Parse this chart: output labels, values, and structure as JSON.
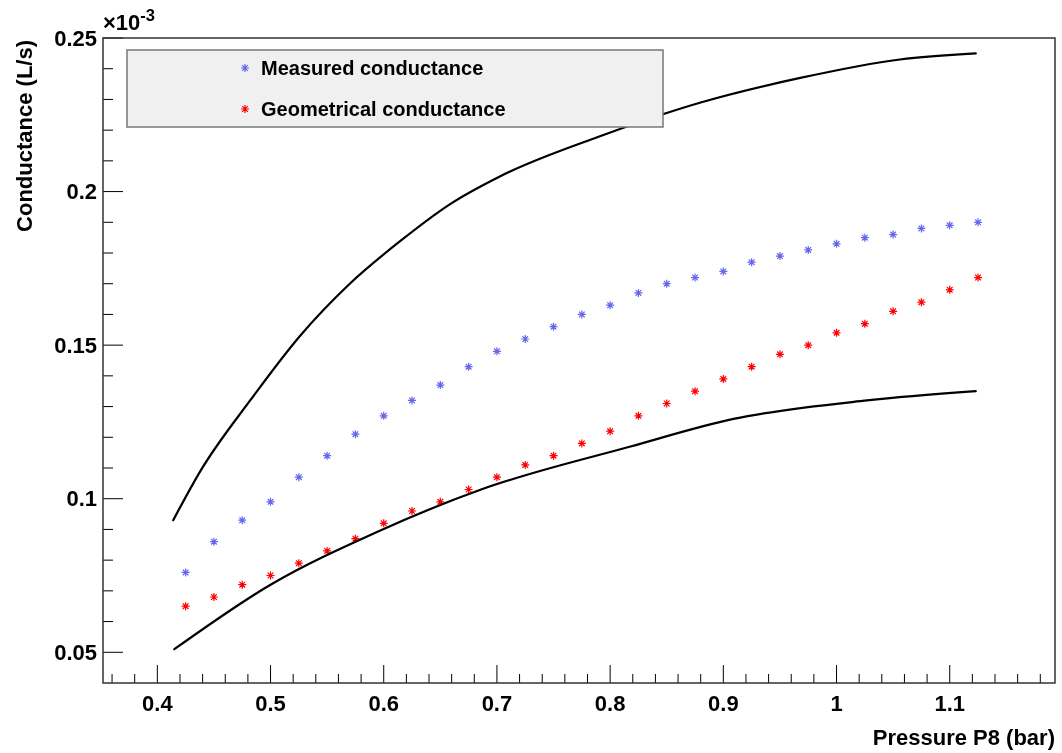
{
  "chart_data": {
    "type": "scatter",
    "xlabel": "Pressure P8 (bar)",
    "ylabel": "Conductance (L/s)",
    "annotations": [
      "×10$^{-3}$"
    ],
    "xlim": [
      0.352,
      1.193
    ],
    "ylim": [
      0.04,
      0.25
    ],
    "xticks": [
      {
        "value": 0.36,
        "label": null
      },
      {
        "value": 0.38,
        "label": null
      },
      0.4,
      {
        "value": 0.42,
        "label": null
      },
      {
        "value": 0.44,
        "label": null
      },
      {
        "value": 0.46,
        "label": null
      },
      {
        "value": 0.48,
        "label": null
      },
      0.5,
      {
        "value": 0.52,
        "label": null
      },
      {
        "value": 0.54,
        "label": null
      },
      {
        "value": 0.56,
        "label": null
      },
      {
        "value": 0.58,
        "label": null
      },
      0.6,
      {
        "value": 0.62,
        "label": null
      },
      {
        "value": 0.64,
        "label": null
      },
      {
        "value": 0.66,
        "label": null
      },
      {
        "value": 0.68,
        "label": null
      },
      0.7,
      {
        "value": 0.72,
        "label": null
      },
      {
        "value": 0.74,
        "label": null
      },
      {
        "value": 0.76,
        "label": null
      },
      {
        "value": 0.78,
        "label": null
      },
      0.8,
      {
        "value": 0.82,
        "label": null
      },
      {
        "value": 0.84,
        "label": null
      },
      {
        "value": 0.86,
        "label": null
      },
      {
        "value": 0.88,
        "label": null
      },
      0.9,
      {
        "value": 0.92,
        "label": null
      },
      {
        "value": 0.94,
        "label": null
      },
      {
        "value": 0.96,
        "label": null
      },
      {
        "value": 0.98,
        "label": null
      },
      1,
      {
        "value": 1.02,
        "label": null
      },
      {
        "value": 1.04,
        "label": null
      },
      {
        "value": 1.06,
        "label": null
      },
      {
        "value": 1.08,
        "label": null
      },
      1.1,
      {
        "value": 1.12,
        "label": null
      },
      {
        "value": 1.14,
        "label": null
      },
      {
        "value": 1.16,
        "label": null
      },
      {
        "value": 1.18,
        "label": null
      }
    ],
    "yticks": [
      0.05,
      {
        "value": 0.06,
        "label": null
      },
      {
        "value": 0.07,
        "label": null
      },
      {
        "value": 0.08,
        "label": null
      },
      {
        "value": 0.09,
        "label": null
      },
      0.1,
      {
        "value": 0.11,
        "label": null
      },
      {
        "value": 0.12,
        "label": null
      },
      {
        "value": 0.13,
        "label": null
      },
      {
        "value": 0.14,
        "label": null
      },
      0.15,
      {
        "value": 0.16,
        "label": null
      },
      {
        "value": 0.17,
        "label": null
      },
      {
        "value": 0.18,
        "label": null
      },
      {
        "value": 0.19,
        "label": null
      },
      0.2,
      {
        "value": 0.21,
        "label": null
      },
      {
        "value": 0.22,
        "label": null
      },
      {
        "value": 0.23,
        "label": null
      },
      {
        "value": 0.24,
        "label": null
      },
      0.25
    ],
    "grid": false,
    "legend": "top left",
    "marker": "cross",
    "x": [
      0.425,
      0.45,
      0.475,
      0.5,
      0.525,
      0.55,
      0.575,
      0.6,
      0.625,
      0.65,
      0.675,
      0.7,
      0.725,
      0.75,
      0.775,
      0.8,
      0.825,
      0.85,
      0.875,
      0.9,
      0.925,
      0.95,
      0.975,
      1.0,
      1.025,
      1.05,
      1.075,
      1.1,
      1.125
    ],
    "series": [
      {
        "name": "Measured conductance",
        "color": "#6666ee",
        "values": [
          0.076,
          0.086,
          0.093,
          0.099,
          0.107,
          0.114,
          0.121,
          0.127,
          0.132,
          0.137,
          0.143,
          0.148,
          0.152,
          0.156,
          0.16,
          0.163,
          0.167,
          0.17,
          0.172,
          0.174,
          0.177,
          0.179,
          0.181,
          0.183,
          0.185,
          0.186,
          0.188,
          0.189,
          0.19
        ]
      },
      {
        "name": "Geometrical conductance",
        "color": "#ff0000",
        "values": [
          0.065,
          0.068,
          0.072,
          0.075,
          0.079,
          0.083,
          0.087,
          0.092,
          0.096,
          0.099,
          0.103,
          0.107,
          0.111,
          0.114,
          0.118,
          0.122,
          0.127,
          0.131,
          0.135,
          0.139,
          0.143,
          0.147,
          0.15,
          0.154,
          0.157,
          0.161,
          0.164,
          0.168,
          0.172
        ]
      },
      {
        "type": "line",
        "color": "#000000",
        "marker": "none",
        "x": [
          0.414,
          0.438,
          0.482,
          0.526,
          0.57,
          0.615,
          0.659,
          0.703,
          0.791,
          0.88,
          0.968,
          1.056,
          1.123
        ],
        "values": [
          0.093,
          0.109,
          0.132,
          0.153,
          0.17,
          0.184,
          0.196,
          0.205,
          0.218,
          0.229,
          0.237,
          0.243,
          0.245
        ]
      },
      {
        "type": "line",
        "color": "#000000",
        "marker": "none",
        "x": [
          0.415,
          0.5,
          0.593,
          0.686,
          0.818,
          0.909,
          1.027,
          1.123
        ],
        "values": [
          0.051,
          0.072,
          0.089,
          0.103,
          0.117,
          0.126,
          0.132,
          0.135
        ]
      }
    ]
  }
}
